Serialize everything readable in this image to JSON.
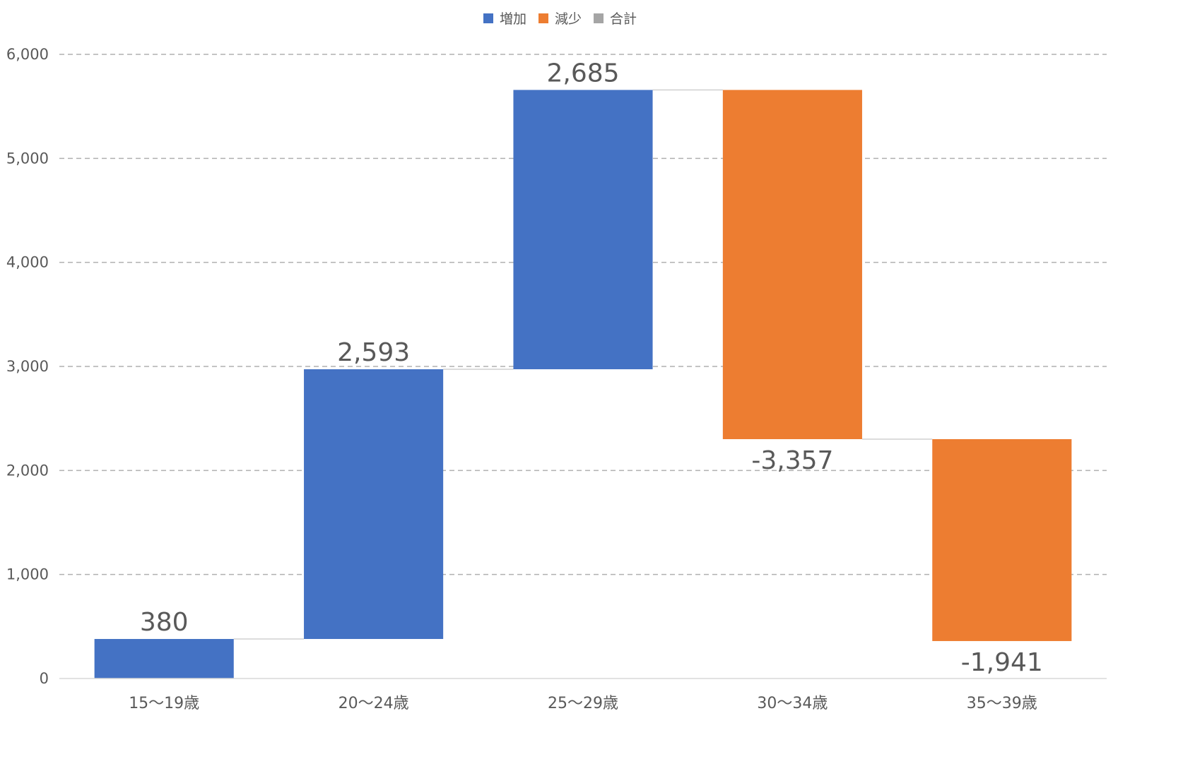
{
  "chart_data": {
    "type": "bar",
    "subtype": "waterfall",
    "title": "",
    "xlabel": "",
    "ylabel": "",
    "categories": [
      "15〜19歳",
      "20〜24歳",
      "25〜29歳",
      "30〜34歳",
      "35〜39歳"
    ],
    "values": [
      380,
      2593,
      2685,
      -3357,
      -1941
    ],
    "value_labels": [
      "380",
      "2,593",
      "2,685",
      "-3,357",
      "-1,941"
    ],
    "ylim": [
      0,
      6000
    ],
    "yticks": [
      0,
      1000,
      2000,
      3000,
      4000,
      5000,
      6000
    ],
    "ytick_labels": [
      "0",
      "1,000",
      "2,000",
      "3,000",
      "4,000",
      "5,000",
      "6,000"
    ],
    "grid": true,
    "legend": {
      "position": "top",
      "entries": [
        {
          "name": "増加",
          "color": "#4472C4"
        },
        {
          "name": "減少",
          "color": "#ED7D31"
        },
        {
          "name": "合計",
          "color": "#A5A5A5"
        }
      ]
    },
    "colors": {
      "increase": "#4472C4",
      "decrease": "#ED7D31",
      "total": "#A5A5A5"
    }
  }
}
